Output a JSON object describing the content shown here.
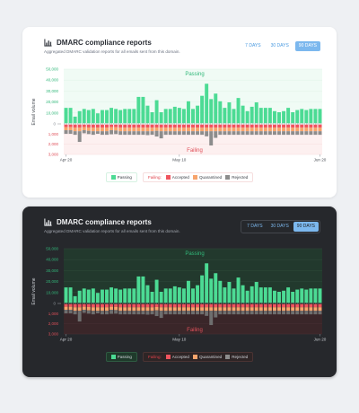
{
  "cards": [
    {
      "theme": "light",
      "title": "DMARC compliance reports",
      "subtitle": "Aggregated DMARC validation reports for all emails sent from this domain.",
      "ranges": [
        "7 DAYS",
        "30 DAYS",
        "90 DAYS"
      ],
      "active_range": "90 DAYS",
      "legend": {
        "passing": "Passing",
        "failing": "Failing:",
        "accepted": "Accepted",
        "quarantined": "Quarantined",
        "rejected": "Rejected"
      }
    },
    {
      "theme": "dark",
      "title": "DMARC compliance reports",
      "subtitle": "Aggregated DMARC validation reports for all emails sent from this domain.",
      "ranges": [
        "7 DAYS",
        "30 DAYS",
        "90 DAYS"
      ],
      "active_range": "90 DAYS",
      "legend": {
        "passing": "Passing",
        "failing": "Failing:",
        "accepted": "Accepted",
        "quarantined": "Quarantined",
        "rejected": "Rejected"
      }
    }
  ],
  "colors": {
    "passing": "#4cdb94",
    "accepted": "#f0545e",
    "quarantined": "#f7a46c",
    "rejected": "#8c8c8c",
    "accent": "#7cb8ee"
  },
  "icons": {
    "title": "bar-chart-icon"
  },
  "chart_data": {
    "type": "bar",
    "ylabel": "Email volume",
    "pass_axis_ticks": [
      "50,000",
      "40,000",
      "30,000",
      "20,000",
      "10,000"
    ],
    "fail_axis_ticks": [
      "1,000",
      "2,000",
      "3,000"
    ],
    "zero_tick": "0",
    "zone_labels": {
      "passing": "Passing",
      "failing": "Failing"
    },
    "x_tick_labels": [
      "Apr 20",
      "May 10",
      "Jun 20"
    ],
    "ylim_passing": [
      0,
      50000
    ],
    "ylim_failing": [
      0,
      3000
    ],
    "grid": true,
    "legend_position": "bottom",
    "series": [
      {
        "name": "Passing",
        "values": [
          14000,
          14000,
          6000,
          11000,
          13000,
          12000,
          13000,
          9000,
          12000,
          12000,
          14000,
          13000,
          12000,
          13000,
          13000,
          13000,
          24000,
          24000,
          16000,
          10000,
          21000,
          10000,
          13000,
          13000,
          15000,
          14000,
          13000,
          20000,
          13000,
          16000,
          25000,
          36000,
          22000,
          27000,
          20000,
          14000,
          19000,
          13000,
          23000,
          16000,
          11000,
          15000,
          19000,
          14000,
          14000,
          14000,
          11000,
          10000,
          11000,
          14000,
          10000,
          12000,
          13000,
          12000,
          13000,
          13000,
          13000
        ]
      },
      {
        "name": "Accepted",
        "values": [
          250,
          250,
          300,
          300,
          250,
          280,
          300,
          300,
          300,
          300,
          250,
          260,
          300,
          300,
          300,
          300,
          300,
          300,
          300,
          300,
          280,
          300,
          300,
          300,
          300,
          300,
          300,
          300,
          300,
          300,
          300,
          300,
          300,
          300,
          300,
          300,
          300,
          300,
          300,
          300,
          300,
          300,
          300,
          300,
          300,
          300,
          300,
          300,
          300,
          300,
          300,
          300,
          300,
          300,
          300,
          300,
          300
        ]
      },
      {
        "name": "Quarantined",
        "values": [
          300,
          300,
          350,
          350,
          300,
          330,
          350,
          350,
          350,
          350,
          300,
          320,
          350,
          350,
          350,
          350,
          350,
          350,
          350,
          350,
          330,
          350,
          350,
          350,
          350,
          350,
          350,
          350,
          350,
          350,
          350,
          350,
          350,
          350,
          350,
          350,
          350,
          350,
          350,
          350,
          350,
          350,
          350,
          350,
          350,
          350,
          350,
          350,
          350,
          350,
          350,
          350,
          350,
          350,
          350,
          350,
          350
        ]
      },
      {
        "name": "Rejected",
        "values": [
          350,
          350,
          350,
          1050,
          300,
          320,
          350,
          250,
          350,
          350,
          400,
          350,
          350,
          350,
          350,
          350,
          350,
          350,
          380,
          350,
          560,
          700,
          350,
          350,
          350,
          350,
          350,
          350,
          350,
          350,
          350,
          500,
          1400,
          650,
          350,
          350,
          350,
          350,
          350,
          350,
          350,
          350,
          350,
          350,
          350,
          350,
          350,
          350,
          350,
          350,
          350,
          350,
          350,
          350,
          350,
          350,
          350
        ]
      }
    ]
  }
}
